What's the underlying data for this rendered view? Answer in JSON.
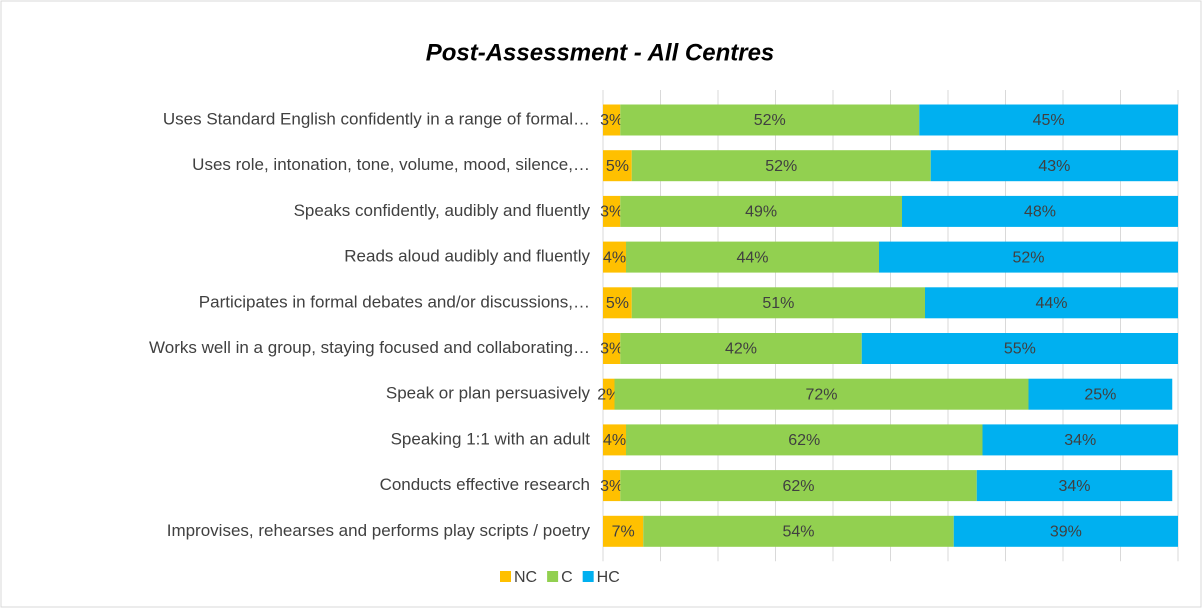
{
  "chart_data": {
    "type": "stacked-bar-horizontal",
    "title": "Post-Assessment - All Centres",
    "categories": [
      "Uses Standard English confidently in a range of formal…",
      "Uses role, intonation, tone, volume, mood, silence,…",
      "Speaks confidently, audibly and fluently",
      "Reads aloud audibly and fluently",
      "Participates in formal debates and/or discussions,…",
      "Works well in a group, staying focused and collaborating…",
      "Speak or plan persuasively",
      "Speaking 1:1 with an adult",
      "Conducts effective research",
      "Improvises, rehearses and performs play scripts / poetry"
    ],
    "series": [
      {
        "name": "NC",
        "color": "#ffc000",
        "values": [
          3,
          5,
          3,
          4,
          5,
          3,
          2,
          4,
          3,
          7
        ],
        "value_labels": [
          "3%",
          "5%",
          "3%",
          "4%",
          "5%",
          "3%",
          "2%",
          "4%",
          "3%",
          "7%"
        ]
      },
      {
        "name": "C",
        "color": "#92d050",
        "values": [
          52,
          52,
          49,
          44,
          51,
          42,
          72,
          62,
          62,
          54
        ],
        "value_labels": [
          "52%",
          "52%",
          "49%",
          "44%",
          "51%",
          "42%",
          "72%",
          "62%",
          "62%",
          "54%"
        ]
      },
      {
        "name": "HC",
        "color": "#00b0f0",
        "values": [
          45,
          43,
          48,
          52,
          44,
          55,
          25,
          34,
          34,
          39
        ],
        "value_labels": [
          "45%",
          "43%",
          "48%",
          "52%",
          "44%",
          "55%",
          "25%",
          "34%",
          "34%",
          "39%"
        ]
      }
    ],
    "xlim": [
      0,
      100
    ],
    "xticks": [
      0,
      10,
      20,
      30,
      40,
      50,
      60,
      70,
      80,
      90,
      100
    ],
    "grid": true,
    "legend": "bottom"
  }
}
